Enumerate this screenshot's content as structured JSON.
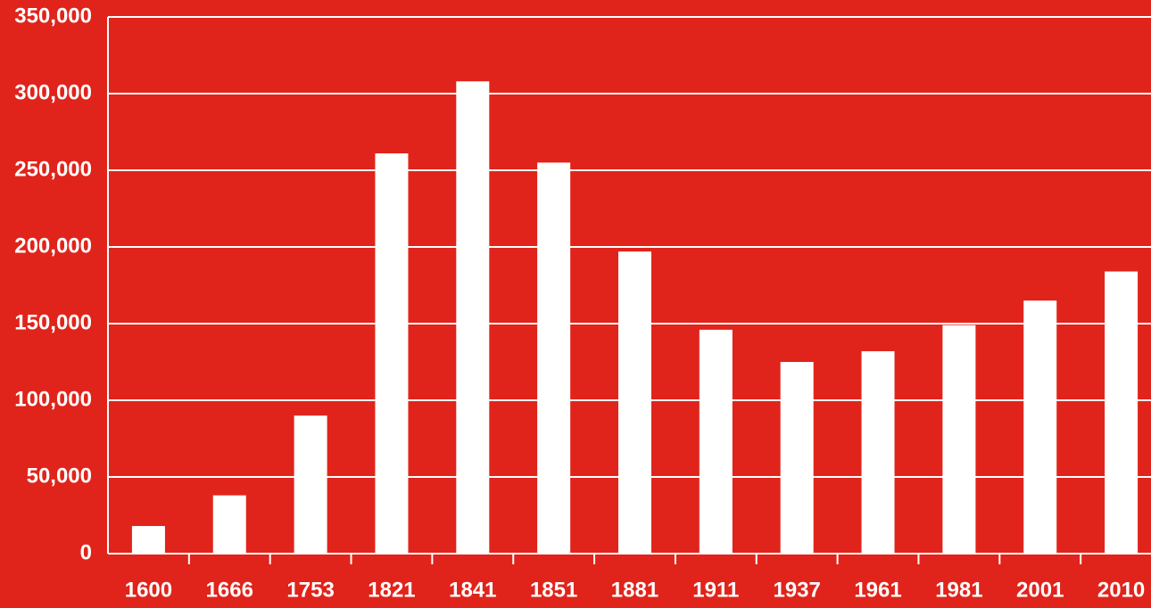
{
  "colors": {
    "background": "#e0241b",
    "foreground": "#ffffff"
  },
  "chart_data": {
    "type": "bar",
    "title": "",
    "xlabel": "",
    "ylabel": "",
    "categories": [
      "1600",
      "1666",
      "1753",
      "1821",
      "1841",
      "1851",
      "1881",
      "1911",
      "1937",
      "1961",
      "1981",
      "2001",
      "2010"
    ],
    "values": [
      18000,
      38000,
      90000,
      261000,
      308000,
      255000,
      197000,
      146000,
      125000,
      132000,
      149000,
      165000,
      184000
    ],
    "ylim": [
      0,
      350000
    ],
    "yticks": [
      0,
      50000,
      100000,
      150000,
      200000,
      250000,
      300000,
      350000
    ],
    "ytick_labels": [
      "0",
      "50,000",
      "100,000",
      "150,000",
      "200,000",
      "250,000",
      "300,000",
      "350,000"
    ],
    "grid": true,
    "legend": "none"
  }
}
